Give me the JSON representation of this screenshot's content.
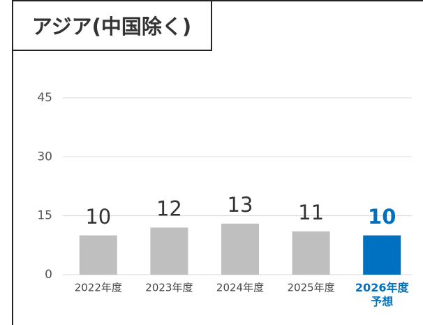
{
  "chart_data": {
    "type": "bar",
    "title": "アジア(中国除く)",
    "categories": [
      "2022年度",
      "2023年度",
      "2024年度",
      "2025年度",
      "2026年度\n予想"
    ],
    "values": [
      10,
      12,
      13,
      11,
      10
    ],
    "colors": [
      "#bfbfbf",
      "#bfbfbf",
      "#bfbfbf",
      "#bfbfbf",
      "#0070c0"
    ],
    "highlight": [
      false,
      false,
      false,
      false,
      true
    ],
    "ylim": [
      0,
      45
    ],
    "yticks": [
      0,
      15,
      30,
      45
    ],
    "grid": true
  }
}
